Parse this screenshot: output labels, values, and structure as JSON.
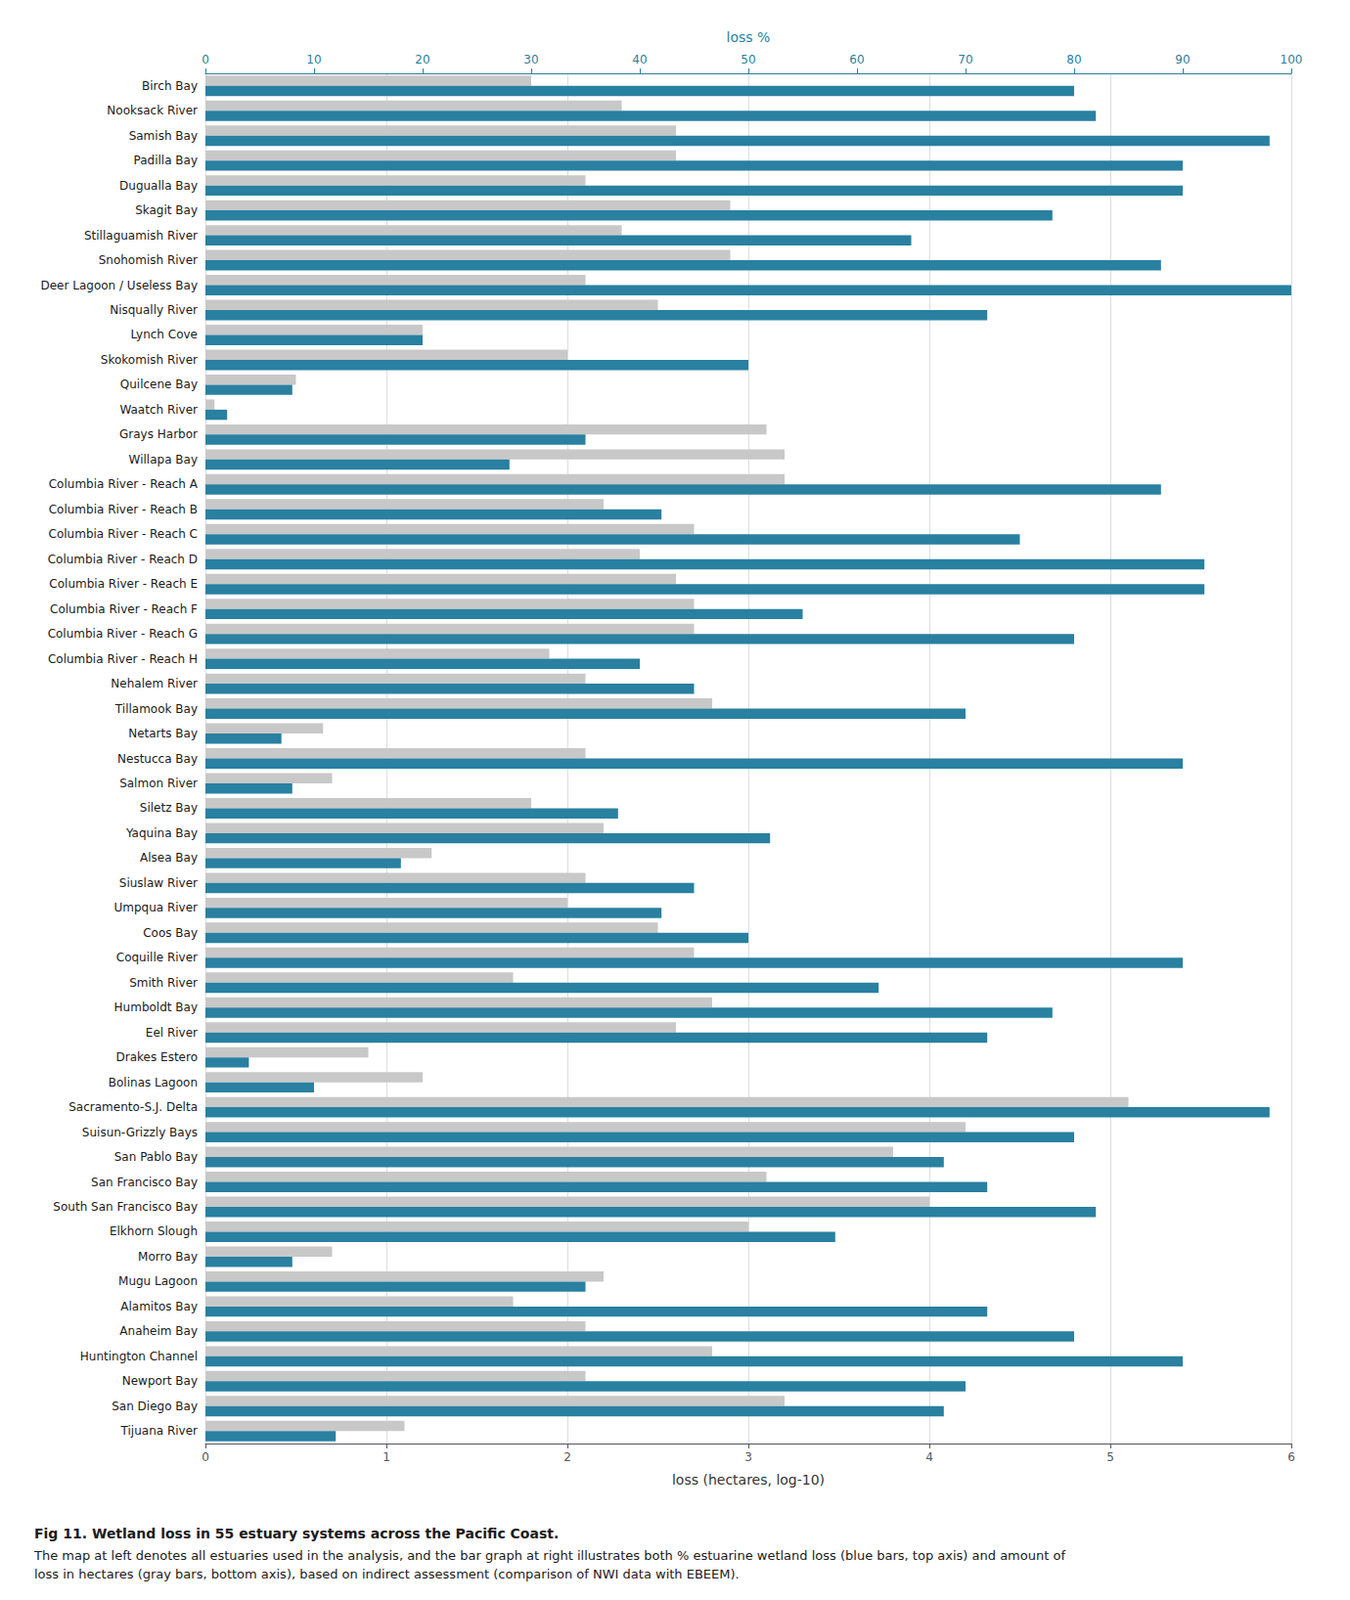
{
  "chart_data": {
    "type": "bar",
    "orientation": "horizontal",
    "title": "Fig 11. Wetland loss in 55 estuary systems across the Pacific Coast.",
    "subtitle": "The map at left denotes all estuaries used in the analysis, and the bar graph at right illustrates both % estuarine wetland loss (blue bars, top axis) and amount of loss in hectares (gray bars, bottom axis), based on indirect assessment (comparison of NWI data with EBEEM).",
    "categories": [
      "Birch Bay",
      "Nooksack River",
      "Samish Bay",
      "Padilla Bay",
      "Dugualla Bay",
      "Skagit Bay",
      "Stillaguamish River",
      "Snohomish River",
      "Deer Lagoon / Useless Bay",
      "Nisqually River",
      "Lynch Cove",
      "Skokomish River",
      "Quilcene Bay",
      "Waatch River",
      "Grays Harbor",
      "Willapa Bay",
      "Columbia River - Reach A",
      "Columbia River - Reach B",
      "Columbia River - Reach C",
      "Columbia River - Reach D",
      "Columbia River - Reach E",
      "Columbia River - Reach F",
      "Columbia River - Reach G",
      "Columbia River - Reach H",
      "Nehalem River",
      "Tillamook Bay",
      "Netarts Bay",
      "Nestucca Bay",
      "Salmon River",
      "Siletz Bay",
      "Yaquina Bay",
      "Alsea Bay",
      "Siuslaw River",
      "Umpqua River",
      "Coos Bay",
      "Coquille River",
      "Smith River",
      "Humboldt Bay",
      "Eel River",
      "Drakes Estero",
      "Bolinas Lagoon",
      "Sacramento-S.J. Delta",
      "Suisun-Grizzly Bays",
      "San Pablo Bay",
      "San Francisco Bay",
      "South San Francisco Bay",
      "Elkhorn Slough",
      "Morro Bay",
      "Mugu Lagoon",
      "Alamitos Bay",
      "Anaheim Bay",
      "Huntington Channel",
      "Newport Bay",
      "San Diego Bay",
      "Tijuana River"
    ],
    "series": [
      {
        "name": "loss (hectares, log-10)",
        "color": "#c8c8c8",
        "values": [
          1.8,
          2.3,
          2.6,
          2.6,
          2.1,
          2.9,
          2.3,
          2.9,
          2.1,
          2.5,
          1.2,
          2.0,
          0.5,
          0.05,
          3.1,
          3.2,
          3.2,
          2.2,
          2.7,
          2.4,
          2.6,
          2.7,
          2.7,
          1.9,
          2.1,
          2.8,
          0.65,
          2.1,
          0.7,
          1.8,
          2.2,
          1.25,
          2.1,
          2.0,
          2.5,
          2.7,
          1.7,
          2.8,
          2.6,
          0.9,
          1.2,
          5.1,
          4.2,
          3.8,
          3.1,
          4.0,
          3.0,
          0.7,
          2.2,
          1.7,
          2.1,
          2.8,
          2.1,
          3.2,
          1.1
        ]
      },
      {
        "name": "loss %",
        "color": "#2980a0",
        "axis": "y2",
        "values": [
          80,
          82,
          98,
          90,
          90,
          78,
          65,
          88,
          100,
          72,
          20,
          50,
          8,
          2,
          35,
          28,
          88,
          42,
          75,
          92,
          92,
          55,
          80,
          40,
          45,
          70,
          7,
          90,
          8,
          38,
          52,
          18,
          45,
          42,
          50,
          90,
          62,
          78,
          72,
          4,
          10,
          98,
          80,
          68,
          72,
          82,
          58,
          8,
          35,
          72,
          80,
          90,
          70,
          68,
          12
        ]
      }
    ],
    "ylabel": "loss (hectares, log-10)",
    "ylim": [
      0,
      6
    ],
    "yticks": [
      0,
      1,
      2,
      3,
      4,
      5,
      6
    ],
    "y2label": "loss %",
    "y2lim": [
      0,
      100
    ],
    "y2ticks": [
      0,
      10,
      20,
      30,
      40,
      50,
      60,
      70,
      80,
      90,
      100
    ],
    "grid": true
  }
}
